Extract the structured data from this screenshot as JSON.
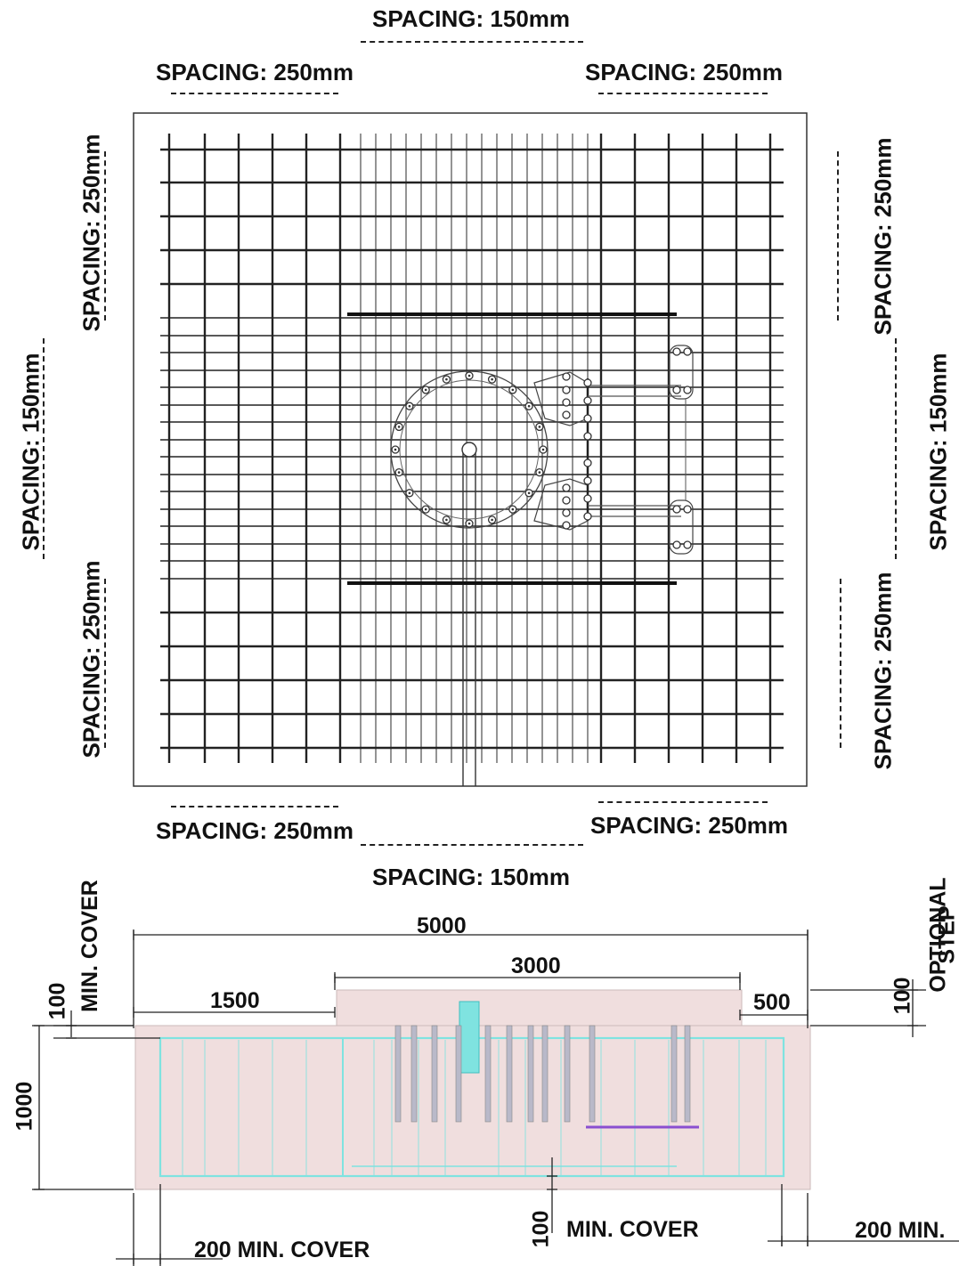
{
  "plan": {
    "spacing_labels": {
      "top_center": "SPACING: 150mm",
      "top_left": "SPACING: 250mm",
      "top_right": "SPACING: 250mm",
      "left_upper": "SPACING: 250mm",
      "left_middle": "SPACING: 150mm",
      "left_lower": "SPACING: 250mm",
      "right_upper": "SPACING: 250mm",
      "right_middle": "SPACING: 150mm",
      "right_lower": "SPACING: 250mm",
      "bottom_left": "SPACING: 250mm",
      "bottom_right": "SPACING: 250mm",
      "bottom_center": "SPACING: 150mm"
    }
  },
  "section": {
    "overall_width": "5000",
    "center_width": "3000",
    "left_width": "1500",
    "right_offset": "500",
    "top_cover_value": "100",
    "top_cover_label": "MIN. COVER",
    "step_value": "100",
    "step_label_1": "OPTIONAL",
    "step_label_2": "STEP",
    "depth": "1000",
    "bottom_cover_value": "100",
    "bottom_cover_label": "MIN. COVER",
    "left_side_cover": "200 MIN. COVER",
    "right_side_cover": "200 MIN."
  },
  "colors": {
    "concrete": "#f0dede",
    "rebar_section": "#7fe3e0",
    "accent_purple": "#8a4fd0",
    "rebar_plan": "#222222"
  }
}
